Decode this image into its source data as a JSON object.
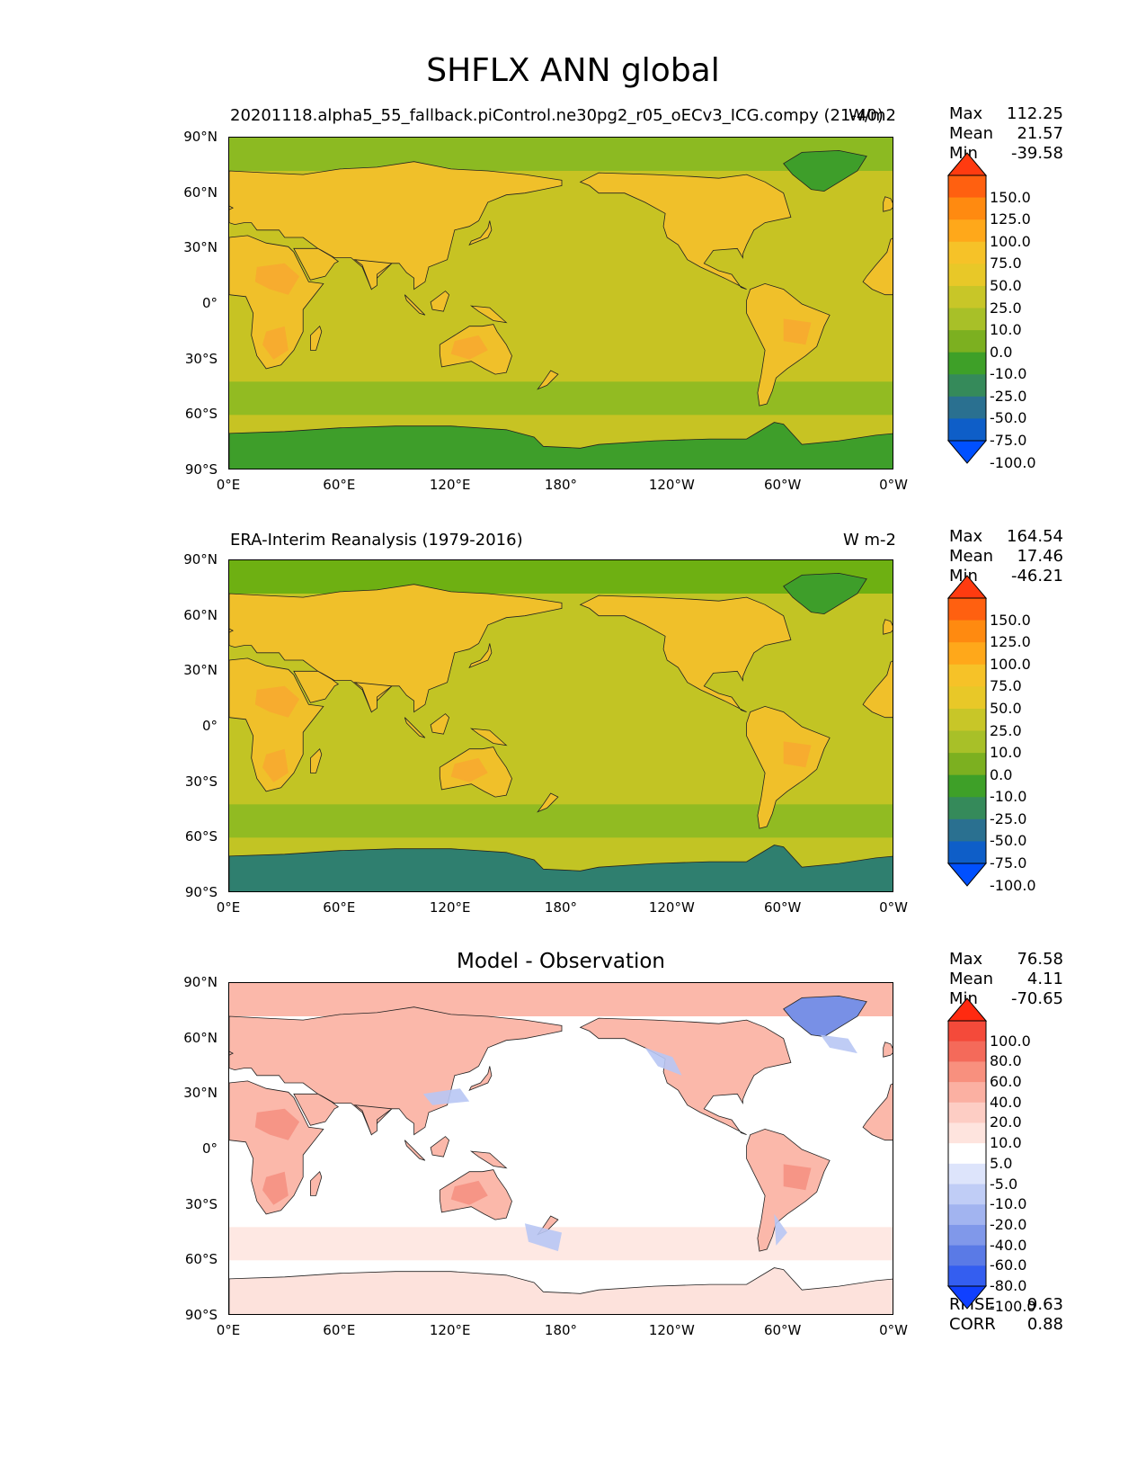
{
  "title": "SHFLX ANN global",
  "panels": [
    {
      "id": "model",
      "left_title": "20201118.alpha5_55_fallback.piControl.ne30pg2_r05_oECv3_ICG.compy (21-40)",
      "right_title": "W/m2",
      "center_title": "",
      "stats": {
        "max_label": "Max",
        "max": "112.25",
        "mean_label": "Mean",
        "mean": "21.57",
        "min_label": "Min",
        "min": "-39.58"
      },
      "colorbar": "abs"
    },
    {
      "id": "obs",
      "left_title": "ERA-Interim Reanalysis (1979-2016)",
      "right_title": "W m-2",
      "center_title": "",
      "stats": {
        "max_label": "Max",
        "max": "164.54",
        "mean_label": "Mean",
        "mean": "17.46",
        "min_label": "Min",
        "min": "-46.21"
      },
      "colorbar": "abs"
    },
    {
      "id": "diff",
      "left_title": "",
      "right_title": "",
      "center_title": "Model - Observation",
      "stats": {
        "max_label": "Max",
        "max": "76.58",
        "mean_label": "Mean",
        "mean": "4.11",
        "min_label": "Min",
        "min": "-70.65"
      },
      "colorbar": "diff",
      "extra": {
        "rmse_label": "RMSE",
        "rmse": "9.63",
        "corr_label": "CORR",
        "corr": "0.88"
      }
    }
  ],
  "axes": {
    "lat_ticks": [
      "90°N",
      "60°N",
      "30°N",
      "0°",
      "30°S",
      "60°S",
      "90°S"
    ],
    "lon_ticks": [
      "0°E",
      "60°E",
      "120°E",
      "180°",
      "120°W",
      "60°W",
      "0°W"
    ]
  },
  "colorbars": {
    "abs": {
      "labels": [
        "150.0",
        "125.0",
        "100.0",
        "75.0",
        "50.0",
        "25.0",
        "10.0",
        "0.0",
        "-10.0",
        "-25.0",
        "-50.0",
        "-75.0",
        "-100.0"
      ],
      "colors": [
        "#ff3b10",
        "#ff6010",
        "#ff8a10",
        "#ffa81a",
        "#f6c228",
        "#e8c828",
        "#c8c628",
        "#a8c028",
        "#7cb020",
        "#3ea028",
        "#358a5a",
        "#2a7090",
        "#0e5ec8",
        "#0050ff"
      ]
    },
    "diff": {
      "labels": [
        "100.0",
        "80.0",
        "60.0",
        "40.0",
        "20.0",
        "10.0",
        "5.0",
        "-5.0",
        "-10.0",
        "-20.0",
        "-40.0",
        "-60.0",
        "-80.0",
        "-100.0"
      ],
      "colors": [
        "#ff2a10",
        "#f44a3a",
        "#f46a5a",
        "#f8907e",
        "#fbb0a2",
        "#fdcdc4",
        "#fee4de",
        "#ffffff",
        "#dde4fb",
        "#c0cdf6",
        "#a2b4f0",
        "#8098ea",
        "#5a7ae6",
        "#345ef0",
        "#1040ff"
      ]
    }
  },
  "map_colors": {
    "ocean_mid": "#c7c323",
    "ocean_mid_obs": "#c2c424",
    "land_warm": "#f0c02a",
    "land_hot": "#f8a830",
    "cold_green": "#3e9e2a",
    "mid_green": "#8cba22",
    "high_lat_obs": "#6eb012",
    "antarctic_blue": "#2f7f6f",
    "diff_pos": "#fbb8aa",
    "diff_pos_strong": "#f48e80",
    "diff_neg": "#b8c6f4",
    "diff_neg_strong": "#7890e6",
    "coast": "#222222"
  }
}
